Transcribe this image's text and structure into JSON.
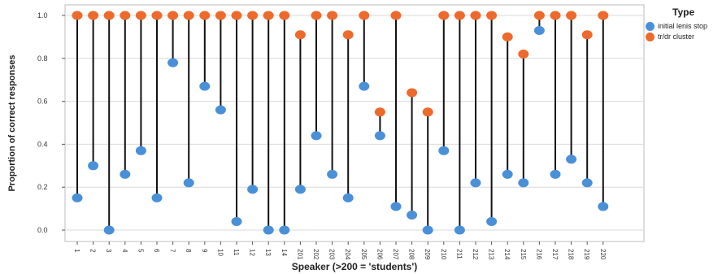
{
  "chart_data": {
    "type": "scatter",
    "xlabel": "Speaker (>200 = 'students')",
    "ylabel": "Proportion of correct responses",
    "ylim": [
      0,
      1.05
    ],
    "yticks": [
      "0.0",
      "0.2",
      "0.4",
      "0.6",
      "0.8",
      "1.0"
    ],
    "grid": true,
    "legend_position": "top-right",
    "legend_title": "Type",
    "categories": [
      "1",
      "2",
      "3",
      "4",
      "5",
      "6",
      "7",
      "8",
      "9",
      "10",
      "11",
      "12",
      "13",
      "14",
      "201",
      "202",
      "203",
      "204",
      "205",
      "206",
      "207",
      "208",
      "209",
      "210",
      "211",
      "212",
      "213",
      "214",
      "215",
      "216",
      "217",
      "218",
      "219",
      "220"
    ],
    "series": [
      {
        "name": "initial lenis stop",
        "color": "#4A90D9",
        "values": [
          0.15,
          0.3,
          0.0,
          0.26,
          0.37,
          0.15,
          0.78,
          0.22,
          0.67,
          0.56,
          0.04,
          0.19,
          0.0,
          0.0,
          0.19,
          0.44,
          0.26,
          0.15,
          0.67,
          0.44,
          0.11,
          0.07,
          0.0,
          0.37,
          0.0,
          0.22,
          0.04,
          0.26,
          0.22,
          0.93,
          0.26,
          0.33,
          0.22,
          0.11
        ]
      },
      {
        "name": "tr/dr cluster",
        "color": "#EE6A2C",
        "values": [
          1.0,
          1.0,
          1.0,
          1.0,
          1.0,
          1.0,
          1.0,
          1.0,
          1.0,
          1.0,
          1.0,
          1.0,
          1.0,
          1.0,
          0.91,
          1.0,
          1.0,
          0.91,
          1.0,
          0.55,
          1.0,
          0.64,
          0.55,
          1.0,
          1.0,
          1.0,
          1.0,
          0.9,
          0.82,
          1.0,
          1.0,
          1.0,
          0.91,
          1.0
        ]
      }
    ]
  }
}
